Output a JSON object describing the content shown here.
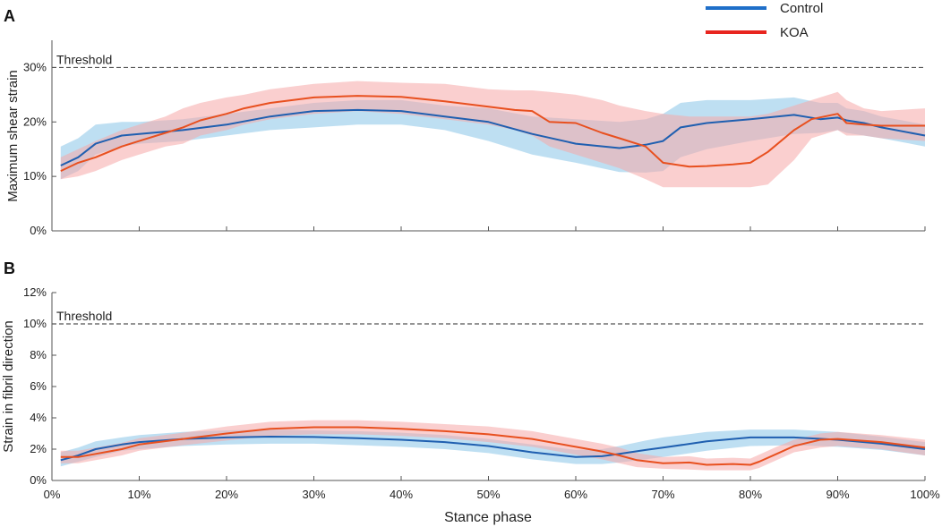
{
  "chart_data": [
    {
      "type": "line",
      "panel_label": "A",
      "ylabel": "Maximum shear strain",
      "xlabel": "",
      "xlim": [
        0,
        100
      ],
      "ylim": [
        0,
        35
      ],
      "x_ticks": [
        0,
        10,
        20,
        30,
        40,
        50,
        60,
        70,
        80,
        90,
        100
      ],
      "y_ticks": [
        0,
        10,
        20,
        30
      ],
      "y_tick_labels": [
        "0%",
        "10%",
        "20%",
        "30%"
      ],
      "x_tick_labels": [],
      "threshold": {
        "value": 30,
        "label": "Threshold"
      },
      "colors": {
        "control": "#1f5fb0",
        "koa": "#e8501f",
        "control_band": "#a8d4ee",
        "koa_band": "#f6a8a8"
      },
      "series": [
        {
          "name": "Control",
          "x": [
            1,
            3,
            5,
            8,
            10,
            15,
            20,
            25,
            30,
            35,
            40,
            45,
            50,
            55,
            60,
            65,
            68,
            70,
            72,
            75,
            80,
            85,
            88,
            90,
            91,
            93,
            95,
            100
          ],
          "values": [
            12,
            13.5,
            16,
            17.5,
            17.8,
            18.5,
            19.5,
            21,
            22,
            22.2,
            22,
            21,
            20,
            17.8,
            16,
            15.2,
            15.8,
            16.5,
            19,
            19.8,
            20.5,
            21.3,
            20.5,
            20.8,
            20.3,
            19.8,
            19,
            17.5
          ],
          "lower": [
            9.5,
            11,
            14,
            15.5,
            16,
            16.5,
            17.5,
            18.5,
            19,
            19.5,
            19.5,
            18.5,
            16.5,
            14,
            12.5,
            10.8,
            10.7,
            11,
            13.5,
            15,
            16.5,
            17.8,
            18,
            18.5,
            18,
            17.5,
            17,
            15.5
          ],
          "upper": [
            15.5,
            17,
            19.5,
            20,
            20,
            20.5,
            21.5,
            22.5,
            23.5,
            24,
            24,
            23,
            22.5,
            21,
            20.5,
            20,
            20.5,
            21.5,
            23.5,
            24,
            24,
            24.5,
            23.5,
            23.5,
            22.5,
            22,
            21,
            19.5
          ]
        },
        {
          "name": "KOA",
          "x": [
            1,
            3,
            5,
            8,
            10,
            13,
            15,
            17,
            20,
            22,
            25,
            30,
            35,
            40,
            45,
            50,
            53,
            55,
            57,
            60,
            63,
            65,
            68,
            70,
            73,
            75,
            78,
            80,
            82,
            85,
            87,
            90,
            91,
            93,
            95,
            100
          ],
          "values": [
            11,
            12.5,
            13.5,
            15.5,
            16.5,
            18,
            19,
            20.3,
            21.5,
            22.5,
            23.5,
            24.5,
            24.8,
            24.6,
            23.8,
            22.8,
            22.2,
            22,
            20,
            19.8,
            18,
            17,
            15.5,
            12.5,
            11.8,
            11.9,
            12.2,
            12.5,
            14.5,
            18.5,
            20.5,
            21.5,
            19.8,
            19.5,
            19.3,
            19.3
          ],
          "lower": [
            9.5,
            10,
            11,
            13,
            14,
            15.5,
            16,
            17.5,
            18.5,
            19.5,
            20.5,
            21.5,
            22,
            21.5,
            20.5,
            19.5,
            18.5,
            17.5,
            15.5,
            14,
            12.5,
            11.5,
            9.5,
            8,
            8,
            8,
            8,
            8,
            8.5,
            13,
            17,
            18.5,
            17.5,
            17.5,
            17,
            16.5
          ],
          "upper": [
            13.5,
            15,
            16.5,
            18.5,
            19.5,
            21,
            22.5,
            23.5,
            24.5,
            25,
            26,
            27,
            27.5,
            27.2,
            27,
            26,
            25.8,
            25.8,
            25.5,
            25,
            24,
            23,
            22,
            21.5,
            21,
            21,
            21,
            21,
            21.5,
            23,
            24,
            25.5,
            24,
            22.5,
            22,
            22.5
          ]
        }
      ]
    },
    {
      "type": "line",
      "panel_label": "B",
      "ylabel": "Strain in fibril direction",
      "xlabel": "Stance phase",
      "xlim": [
        0,
        100
      ],
      "ylim": [
        0,
        12
      ],
      "x_ticks": [
        0,
        10,
        20,
        30,
        40,
        50,
        60,
        70,
        80,
        90,
        100
      ],
      "x_tick_labels": [
        "0%",
        "10%",
        "20%",
        "30%",
        "40%",
        "50%",
        "60%",
        "70%",
        "80%",
        "90%",
        "100%"
      ],
      "y_ticks": [
        0,
        2,
        4,
        6,
        8,
        10,
        12
      ],
      "y_tick_labels": [
        "0%",
        "2%",
        "4%",
        "6%",
        "8%",
        "10%",
        "12%"
      ],
      "threshold": {
        "value": 10,
        "label": "Threshold"
      },
      "colors": {
        "control": "#1f5fb0",
        "koa": "#e8501f",
        "control_band": "#a8d4ee",
        "koa_band": "#f6a8a8"
      },
      "series": [
        {
          "name": "Control",
          "x": [
            1,
            3,
            5,
            8,
            10,
            15,
            20,
            25,
            30,
            35,
            40,
            45,
            50,
            55,
            60,
            63,
            65,
            68,
            70,
            75,
            80,
            85,
            90,
            95,
            100
          ],
          "values": [
            1.3,
            1.6,
            2.0,
            2.3,
            2.45,
            2.65,
            2.75,
            2.8,
            2.78,
            2.7,
            2.6,
            2.45,
            2.2,
            1.8,
            1.5,
            1.55,
            1.7,
            1.95,
            2.1,
            2.5,
            2.75,
            2.75,
            2.6,
            2.35,
            2.0
          ],
          "lower": [
            0.9,
            1.2,
            1.5,
            1.9,
            2.0,
            2.2,
            2.3,
            2.35,
            2.35,
            2.25,
            2.15,
            2.0,
            1.75,
            1.35,
            1.05,
            1.05,
            1.15,
            1.35,
            1.5,
            1.9,
            2.2,
            2.25,
            2.15,
            1.95,
            1.6
          ],
          "upper": [
            1.8,
            2.1,
            2.5,
            2.75,
            2.9,
            3.1,
            3.2,
            3.25,
            3.2,
            3.15,
            3.05,
            2.9,
            2.65,
            2.3,
            1.95,
            2.0,
            2.2,
            2.55,
            2.75,
            3.1,
            3.25,
            3.25,
            3.1,
            2.8,
            2.45
          ]
        },
        {
          "name": "KOA",
          "x": [
            1,
            3,
            5,
            8,
            10,
            15,
            20,
            25,
            30,
            35,
            40,
            45,
            50,
            55,
            60,
            63,
            65,
            67,
            70,
            73,
            75,
            78,
            80,
            81,
            83,
            85,
            88,
            90,
            95,
            100
          ],
          "values": [
            1.5,
            1.5,
            1.7,
            2.0,
            2.3,
            2.65,
            3.0,
            3.3,
            3.4,
            3.4,
            3.3,
            3.15,
            2.95,
            2.65,
            2.15,
            1.85,
            1.6,
            1.3,
            1.1,
            1.15,
            1.0,
            1.05,
            1.0,
            1.2,
            1.7,
            2.2,
            2.6,
            2.65,
            2.45,
            2.1
          ],
          "lower": [
            1.1,
            1.1,
            1.3,
            1.6,
            1.9,
            2.25,
            2.55,
            2.85,
            2.95,
            2.95,
            2.85,
            2.7,
            2.45,
            2.15,
            1.65,
            1.35,
            1.1,
            0.85,
            0.75,
            0.7,
            0.65,
            0.65,
            0.65,
            0.8,
            1.3,
            1.8,
            2.1,
            2.2,
            2.0,
            1.6
          ],
          "upper": [
            1.9,
            1.9,
            2.1,
            2.4,
            2.7,
            3.05,
            3.45,
            3.75,
            3.85,
            3.85,
            3.75,
            3.6,
            3.45,
            3.15,
            2.65,
            2.35,
            2.1,
            1.75,
            1.5,
            1.55,
            1.4,
            1.45,
            1.4,
            1.65,
            2.15,
            2.6,
            3.0,
            3.1,
            2.9,
            2.6
          ]
        }
      ]
    }
  ],
  "legend": {
    "items": [
      "Control",
      "KOA"
    ]
  }
}
